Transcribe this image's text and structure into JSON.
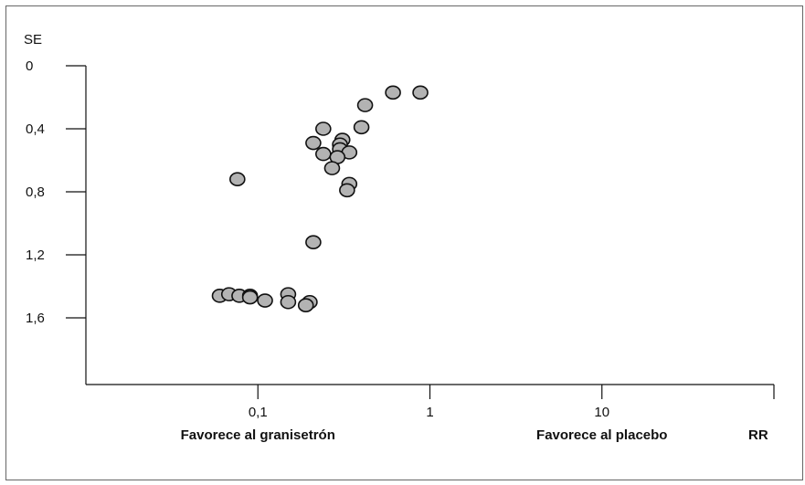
{
  "chart_data": {
    "type": "scatter",
    "title": "",
    "xlabel": "RR",
    "ylabel": "SE",
    "x_scale": "log",
    "xlim": [
      0.01,
      100
    ],
    "ylim": [
      0,
      2.0
    ],
    "y_inverted": true,
    "grid": false,
    "x_ticks": [
      {
        "value": 0.1,
        "label": "0,1"
      },
      {
        "value": 1,
        "label": "1"
      },
      {
        "value": 10,
        "label": "10"
      },
      {
        "value": 100,
        "label": ""
      }
    ],
    "y_ticks": [
      {
        "value": 0,
        "label": "0"
      },
      {
        "value": 0.4,
        "label": "0,4"
      },
      {
        "value": 0.8,
        "label": "0,8"
      },
      {
        "value": 1.2,
        "label": "1,2"
      },
      {
        "value": 1.6,
        "label": "1,6"
      }
    ],
    "annotations": [
      {
        "text": "Favorece al granisetrón",
        "x": 0.1
      },
      {
        "text": "Favorece al placebo",
        "x": 10
      }
    ],
    "marker_color": "#b3b3b3",
    "marker_edge_color": "#111111",
    "points": [
      {
        "x": 0.61,
        "y": 0.17
      },
      {
        "x": 0.88,
        "y": 0.17
      },
      {
        "x": 0.42,
        "y": 0.25
      },
      {
        "x": 0.24,
        "y": 0.4
      },
      {
        "x": 0.4,
        "y": 0.39
      },
      {
        "x": 0.21,
        "y": 0.49
      },
      {
        "x": 0.31,
        "y": 0.47
      },
      {
        "x": 0.3,
        "y": 0.5
      },
      {
        "x": 0.3,
        "y": 0.53
      },
      {
        "x": 0.24,
        "y": 0.56
      },
      {
        "x": 0.34,
        "y": 0.55
      },
      {
        "x": 0.29,
        "y": 0.58
      },
      {
        "x": 0.27,
        "y": 0.65
      },
      {
        "x": 0.076,
        "y": 0.72
      },
      {
        "x": 0.34,
        "y": 0.75
      },
      {
        "x": 0.33,
        "y": 0.79
      },
      {
        "x": 0.21,
        "y": 1.12
      },
      {
        "x": 0.06,
        "y": 1.46
      },
      {
        "x": 0.068,
        "y": 1.45
      },
      {
        "x": 0.078,
        "y": 1.46
      },
      {
        "x": 0.09,
        "y": 1.46
      },
      {
        "x": 0.09,
        "y": 1.47
      },
      {
        "x": 0.11,
        "y": 1.49
      },
      {
        "x": 0.15,
        "y": 1.45
      },
      {
        "x": 0.15,
        "y": 1.5
      },
      {
        "x": 0.2,
        "y": 1.5
      },
      {
        "x": 0.19,
        "y": 1.52
      }
    ]
  }
}
